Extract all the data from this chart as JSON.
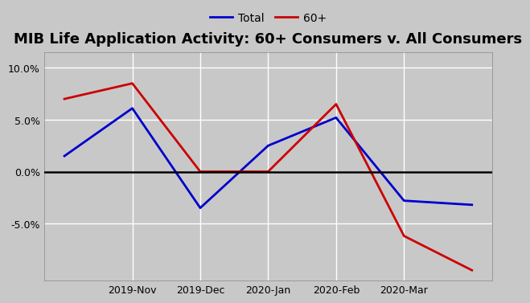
{
  "title": "MIB Life Application Activity: 60+ Consumers v. All Consumers",
  "x_positions": [
    0,
    1,
    2,
    3,
    4,
    5,
    6
  ],
  "x_tick_positions": [
    1,
    2,
    3,
    4,
    5
  ],
  "x_tick_labels": [
    "2019-Nov",
    "2019-Dec",
    "2020-Jan",
    "2020-Feb",
    "2020-Mar"
  ],
  "total_values": [
    1.5,
    6.1,
    -3.5,
    2.5,
    5.2,
    -2.8,
    -3.2
  ],
  "sixty_plus_values": [
    7.0,
    8.5,
    0.0,
    0.0,
    6.5,
    -6.2,
    -9.5
  ],
  "total_color": "#0000CD",
  "sixty_plus_color": "#CC0000",
  "background_color": "#C8C8C8",
  "plot_background_color": "#C8C8C8",
  "grid_color": "#FFFFFF",
  "zero_line_color": "#000000",
  "legend_labels": [
    "Total",
    "60+"
  ],
  "ylim": [
    -10.5,
    11.5
  ],
  "yticks": [
    -5.0,
    0.0,
    5.0,
    10.0
  ],
  "title_fontsize": 13,
  "legend_fontsize": 10,
  "tick_fontsize": 9,
  "line_width": 2.0
}
